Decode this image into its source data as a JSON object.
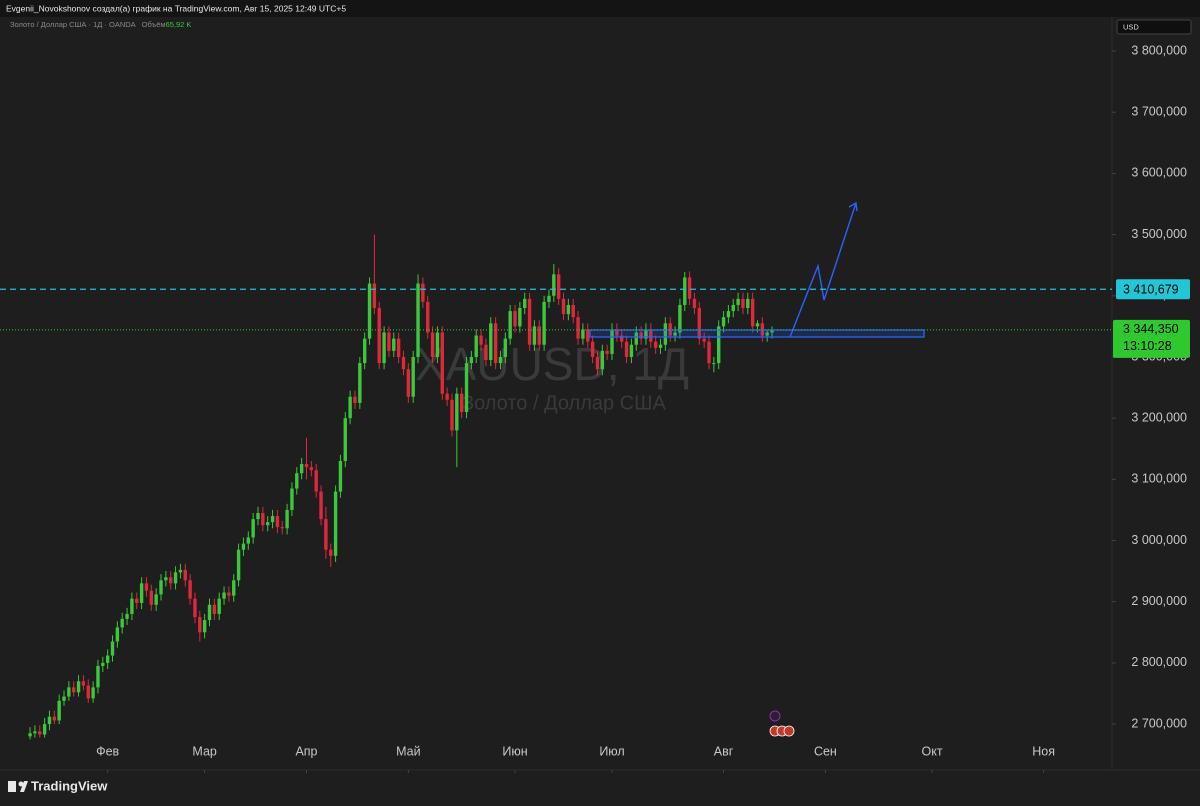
{
  "header": {
    "author_line": "Evgenii_Novokshonov создал(а) график на TradingView.com, Авг 15, 2025 12:49 UTC+5"
  },
  "chart_data": {
    "type": "candlestick",
    "symbol_line": "Золото / Доллар США · 1Д · OANDA",
    "volume_label": "Объём",
    "volume_value": "65,92 K",
    "watermark": "XAUUSD, 1Д",
    "watermark_subtitle": "Золото / Доллар США",
    "currency": "USD",
    "up_color": "#3cc83c",
    "down_color": "#e0283c",
    "open": [
      2680,
      2685,
      2688,
      2683,
      2700,
      2712,
      2706,
      2738,
      2745,
      2760,
      2752,
      2770,
      2763,
      2742,
      2760,
      2795,
      2800,
      2812,
      2835,
      2858,
      2872,
      2880,
      2905,
      2898,
      2930,
      2918,
      2895,
      2912,
      2935,
      2940,
      2930,
      2948,
      2952,
      2935,
      2905,
      2875,
      2850,
      2870,
      2895,
      2880,
      2905,
      2915,
      2910,
      2935,
      2985,
      2995,
      3005,
      3035,
      3045,
      3025,
      3030,
      3040,
      3022,
      3020,
      3050,
      3085,
      3110,
      3125,
      3120,
      3115,
      3080,
      3035,
      2985,
      2975,
      3080,
      3130,
      3200,
      3235,
      3225,
      3290,
      3330,
      3420,
      3380,
      3290,
      3340,
      3310,
      3330,
      3300,
      3280,
      3235,
      3300,
      3420,
      3390,
      3340,
      3300,
      3340,
      3240,
      3230,
      3180,
      3240,
      3210,
      3290,
      3300,
      3335,
      3320,
      3295,
      3355,
      3290,
      3300,
      3330,
      3375,
      3350,
      3380,
      3395,
      3320,
      3350,
      3320,
      3390,
      3400,
      3435,
      3395,
      3370,
      3385,
      3365,
      3330,
      3345,
      3325,
      3300,
      3280,
      3310,
      3305,
      3345,
      3335,
      3325,
      3300,
      3320,
      3340,
      3330,
      3345,
      3325,
      3315,
      3320,
      3355,
      3335,
      3340,
      3385,
      3430,
      3395,
      3380,
      3330,
      3325,
      3290,
      3290,
      3350,
      3365,
      3375,
      3385,
      3395,
      3380,
      3395,
      3350,
      3355,
      3335,
      3340
    ],
    "high": [
      2695,
      2698,
      2698,
      2710,
      2722,
      2722,
      2748,
      2755,
      2770,
      2770,
      2780,
      2780,
      2773,
      2770,
      2805,
      2810,
      2822,
      2845,
      2868,
      2882,
      2890,
      2915,
      2915,
      2940,
      2940,
      2928,
      2922,
      2945,
      2950,
      2950,
      2958,
      2962,
      2962,
      2945,
      2915,
      2885,
      2880,
      2905,
      2905,
      2915,
      2925,
      2925,
      2945,
      2995,
      3005,
      3015,
      3045,
      3055,
      3055,
      3040,
      3050,
      3050,
      3032,
      3060,
      3095,
      3120,
      3135,
      3168,
      3130,
      3125,
      3090,
      3055,
      2995,
      3090,
      3140,
      3210,
      3245,
      3245,
      3300,
      3340,
      3430,
      3500,
      3390,
      3350,
      3350,
      3340,
      3340,
      3310,
      3290,
      3310,
      3435,
      3430,
      3400,
      3350,
      3350,
      3350,
      3250,
      3240,
      3250,
      3250,
      3300,
      3310,
      3345,
      3345,
      3330,
      3365,
      3365,
      3310,
      3340,
      3385,
      3385,
      3390,
      3405,
      3405,
      3360,
      3360,
      3400,
      3410,
      3452,
      3445,
      3405,
      3395,
      3395,
      3375,
      3355,
      3355,
      3335,
      3310,
      3320,
      3320,
      3355,
      3355,
      3345,
      3335,
      3330,
      3350,
      3350,
      3355,
      3355,
      3335,
      3330,
      3365,
      3365,
      3350,
      3395,
      3439,
      3440,
      3405,
      3390,
      3340,
      3335,
      3300,
      3360,
      3375,
      3385,
      3395,
      3405,
      3405,
      3405,
      3405,
      3360,
      3365,
      3345,
      3350
    ],
    "low": [
      2675,
      2678,
      2678,
      2678,
      2690,
      2700,
      2700,
      2730,
      2738,
      2745,
      2745,
      2755,
      2735,
      2735,
      2750,
      2785,
      2790,
      2802,
      2825,
      2848,
      2862,
      2870,
      2888,
      2888,
      2908,
      2885,
      2885,
      2902,
      2925,
      2920,
      2920,
      2938,
      2925,
      2895,
      2865,
      2835,
      2840,
      2860,
      2870,
      2870,
      2895,
      2900,
      2900,
      2925,
      2975,
      2985,
      2995,
      3025,
      3015,
      3015,
      3020,
      3012,
      3010,
      3010,
      3040,
      3075,
      3100,
      3100,
      3105,
      3070,
      3025,
      2970,
      2957,
      2965,
      3070,
      3120,
      3190,
      3215,
      3215,
      3280,
      3320,
      3370,
      3280,
      3280,
      3300,
      3300,
      3290,
      3270,
      3225,
      3225,
      3290,
      3380,
      3330,
      3290,
      3290,
      3230,
      3220,
      3170,
      3120,
      3200,
      3200,
      3280,
      3290,
      3310,
      3285,
      3285,
      3280,
      3280,
      3290,
      3320,
      3340,
      3340,
      3370,
      3310,
      3310,
      3310,
      3310,
      3380,
      3390,
      3385,
      3360,
      3360,
      3355,
      3320,
      3320,
      3315,
      3290,
      3270,
      3270,
      3295,
      3295,
      3325,
      3315,
      3290,
      3290,
      3310,
      3320,
      3320,
      3315,
      3305,
      3305,
      3310,
      3325,
      3325,
      3330,
      3375,
      3385,
      3370,
      3320,
      3315,
      3280,
      3275,
      3280,
      3340,
      3355,
      3365,
      3375,
      3370,
      3370,
      3340,
      3340,
      3325,
      3325,
      3330
    ],
    "close": [
      2685,
      2688,
      2683,
      2700,
      2712,
      2706,
      2738,
      2745,
      2760,
      2752,
      2770,
      2763,
      2742,
      2760,
      2795,
      2800,
      2812,
      2835,
      2858,
      2872,
      2880,
      2905,
      2898,
      2930,
      2918,
      2895,
      2912,
      2935,
      2940,
      2930,
      2948,
      2952,
      2935,
      2905,
      2875,
      2850,
      2870,
      2895,
      2880,
      2905,
      2915,
      2910,
      2935,
      2985,
      2995,
      3005,
      3035,
      3045,
      3025,
      3030,
      3040,
      3022,
      3020,
      3050,
      3085,
      3110,
      3125,
      3120,
      3115,
      3080,
      3035,
      2985,
      2975,
      3080,
      3130,
      3200,
      3235,
      3225,
      3290,
      3330,
      3420,
      3380,
      3290,
      3340,
      3310,
      3330,
      3300,
      3280,
      3235,
      3300,
      3420,
      3390,
      3340,
      3300,
      3340,
      3240,
      3230,
      3180,
      3240,
      3210,
      3290,
      3300,
      3335,
      3320,
      3295,
      3355,
      3290,
      3300,
      3330,
      3375,
      3350,
      3380,
      3395,
      3320,
      3350,
      3320,
      3390,
      3400,
      3435,
      3395,
      3370,
      3385,
      3365,
      3330,
      3345,
      3325,
      3300,
      3280,
      3310,
      3305,
      3345,
      3335,
      3325,
      3300,
      3320,
      3340,
      3330,
      3345,
      3325,
      3315,
      3320,
      3355,
      3335,
      3340,
      3385,
      3430,
      3395,
      3380,
      3330,
      3325,
      3290,
      3290,
      3350,
      3365,
      3375,
      3385,
      3395,
      3380,
      3395,
      3350,
      3355,
      3335,
      3340,
      3344
    ],
    "xlim": [
      -6.2,
      223.1
    ],
    "xticks": [
      {
        "value": 16,
        "label": "Фев"
      },
      {
        "value": 36,
        "label": "Мар"
      },
      {
        "value": 57,
        "label": "Апр"
      },
      {
        "value": 78,
        "label": "Май"
      },
      {
        "value": 100,
        "label": "Июн"
      },
      {
        "value": 120,
        "label": "Июл"
      },
      {
        "value": 143,
        "label": "Авг"
      },
      {
        "value": 164,
        "label": "Сен"
      },
      {
        "value": 186,
        "label": "Окт"
      },
      {
        "value": 209,
        "label": "Ноя"
      }
    ],
    "ylim": [
      2674,
      3854
    ],
    "yticks": [
      {
        "value": 2700,
        "label": "2 700,000"
      },
      {
        "value": 2800,
        "label": "2 800,000"
      },
      {
        "value": 2900,
        "label": "2 900,000"
      },
      {
        "value": 3000,
        "label": "3 000,000"
      },
      {
        "value": 3100,
        "label": "3 100,000"
      },
      {
        "value": 3200,
        "label": "3 200,000"
      },
      {
        "value": 3300,
        "label": "3 300,000"
      },
      {
        "value": 3400,
        "label": "3 400,000"
      },
      {
        "value": 3500,
        "label": "3 500,000"
      },
      {
        "value": 3600,
        "label": "3 600,000"
      },
      {
        "value": 3700,
        "label": "3 700,000"
      },
      {
        "value": 3800,
        "label": "3 800,000"
      }
    ],
    "alert_line": {
      "value": 3410.679,
      "label": "3 410,679",
      "color": "#22c6d6"
    },
    "last_price": {
      "value": 3344.35,
      "label": "3 344,350",
      "countdown": "13:10:28",
      "color": "#2fc92f"
    }
  },
  "footer": {
    "brand": "TradingView"
  }
}
